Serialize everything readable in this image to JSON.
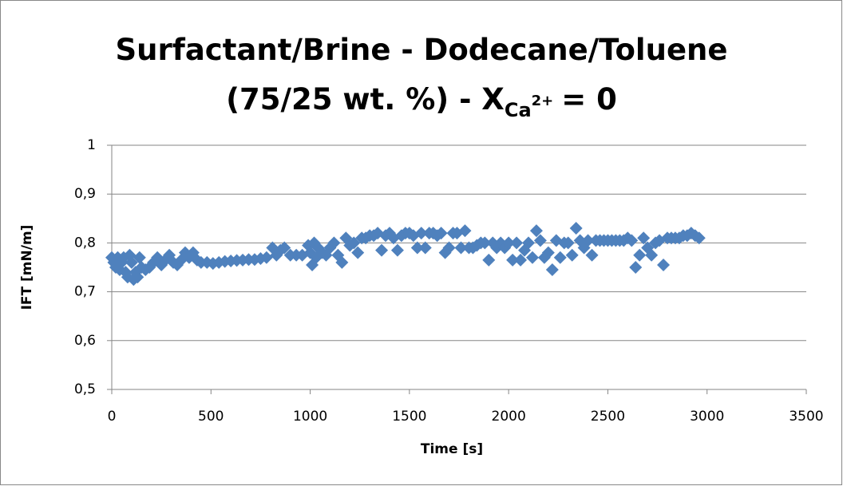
{
  "chart_data": {
    "type": "scatter",
    "title": [
      "Surfactant/Brine - Dodecane/Toluene",
      "(75/25 wt. %) - X",
      "Ca",
      "2+",
      "= 0"
    ],
    "xlabel": "Time [s]",
    "ylabel": "IFT [mN/m]",
    "color": "#4f81bd",
    "grid": true,
    "xlim": [
      0,
      3500
    ],
    "xticks": [
      0,
      500,
      1000,
      1500,
      2000,
      2500,
      3000,
      3500
    ],
    "ylim": [
      0.5,
      1
    ],
    "yticks": [
      {
        "value": 0.5,
        "label": "0,5"
      },
      {
        "value": 0.6,
        "label": "0,6"
      },
      {
        "value": 0.7,
        "label": "0,7"
      },
      {
        "value": 0.8,
        "label": "0,8"
      },
      {
        "value": 0.9,
        "label": "0,9"
      },
      1
    ],
    "x": [
      0,
      10,
      20,
      30,
      40,
      50,
      60,
      70,
      80,
      90,
      100,
      110,
      120,
      130,
      140,
      150,
      170,
      190,
      210,
      230,
      250,
      270,
      290,
      310,
      330,
      350,
      370,
      390,
      410,
      430,
      450,
      480,
      510,
      540,
      570,
      600,
      630,
      660,
      690,
      720,
      750,
      780,
      810,
      830,
      850,
      870,
      900,
      930,
      960,
      990,
      1000,
      1010,
      1020,
      1030,
      1040,
      1060,
      1080,
      1100,
      1120,
      1140,
      1160,
      1180,
      1200,
      1220,
      1240,
      1260,
      1280,
      1300,
      1320,
      1340,
      1360,
      1380,
      1400,
      1420,
      1440,
      1460,
      1480,
      1500,
      1520,
      1540,
      1560,
      1580,
      1600,
      1620,
      1640,
      1660,
      1680,
      1700,
      1720,
      1740,
      1760,
      1780,
      1800,
      1820,
      1840,
      1860,
      1880,
      1900,
      1920,
      1940,
      1960,
      1980,
      2000,
      2020,
      2040,
      2060,
      2080,
      2100,
      2120,
      2140,
      2160,
      2180,
      2200,
      2220,
      2240,
      2260,
      2280,
      2300,
      2320,
      2340,
      2360,
      2380,
      2400,
      2420,
      2440,
      2460,
      2480,
      2500,
      2520,
      2540,
      2560,
      2580,
      2600,
      2620,
      2640,
      2660,
      2680,
      2700,
      2720,
      2740,
      2760,
      2780,
      2800,
      2820,
      2840,
      2860,
      2880,
      2900,
      2920,
      2940,
      2960
    ],
    "values": [
      0.77,
      0.76,
      0.75,
      0.77,
      0.745,
      0.76,
      0.77,
      0.74,
      0.73,
      0.775,
      0.76,
      0.725,
      0.74,
      0.73,
      0.77,
      0.75,
      0.745,
      0.75,
      0.76,
      0.77,
      0.755,
      0.765,
      0.775,
      0.76,
      0.755,
      0.765,
      0.78,
      0.77,
      0.78,
      0.765,
      0.76,
      0.76,
      0.758,
      0.76,
      0.762,
      0.763,
      0.764,
      0.765,
      0.766,
      0.766,
      0.768,
      0.77,
      0.79,
      0.775,
      0.785,
      0.79,
      0.775,
      0.775,
      0.775,
      0.795,
      0.78,
      0.755,
      0.8,
      0.77,
      0.79,
      0.78,
      0.775,
      0.79,
      0.8,
      0.775,
      0.76,
      0.81,
      0.795,
      0.8,
      0.78,
      0.81,
      0.81,
      0.815,
      0.815,
      0.82,
      0.785,
      0.815,
      0.82,
      0.81,
      0.785,
      0.815,
      0.82,
      0.82,
      0.815,
      0.79,
      0.82,
      0.79,
      0.82,
      0.82,
      0.815,
      0.82,
      0.78,
      0.79,
      0.82,
      0.82,
      0.79,
      0.825,
      0.79,
      0.79,
      0.795,
      0.8,
      0.8,
      0.765,
      0.8,
      0.79,
      0.8,
      0.79,
      0.8,
      0.765,
      0.8,
      0.765,
      0.785,
      0.8,
      0.77,
      0.825,
      0.805,
      0.77,
      0.78,
      0.745,
      0.805,
      0.77,
      0.8,
      0.8,
      0.775,
      0.83,
      0.805,
      0.79,
      0.805,
      0.775,
      0.805,
      0.805,
      0.805,
      0.805,
      0.805,
      0.805,
      0.805,
      0.805,
      0.81,
      0.805,
      0.75,
      0.775,
      0.81,
      0.79,
      0.775,
      0.8,
      0.805,
      0.755,
      0.81,
      0.81,
      0.81,
      0.81,
      0.815,
      0.815,
      0.82,
      0.815,
      0.81
    ]
  }
}
